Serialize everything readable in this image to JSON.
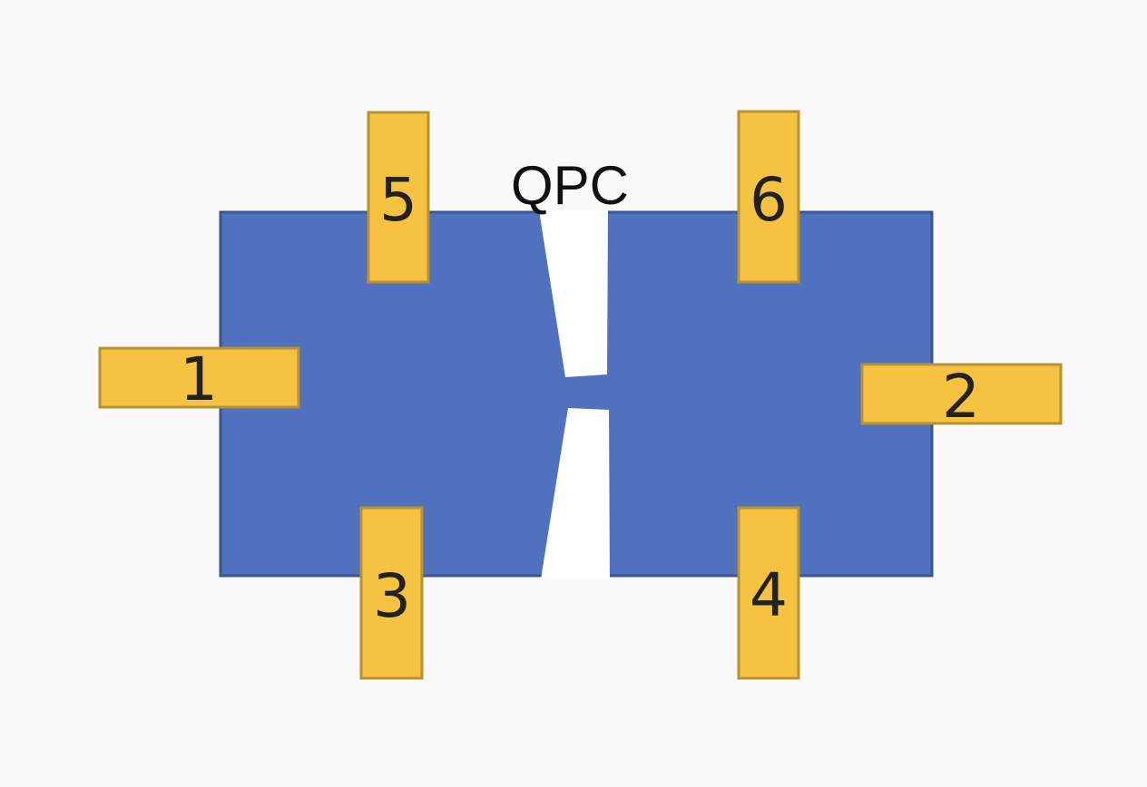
{
  "title": "QPC",
  "colors": {
    "background": "#f9f9f9",
    "channel_fill": "#5072be",
    "channel_stroke": "#3a5590",
    "contact_fill": "#f5c242",
    "contact_stroke": "#b8922e",
    "gate_gap": "#ffffff"
  },
  "contacts": [
    {
      "label": "1"
    },
    {
      "label": "2"
    },
    {
      "label": "3"
    },
    {
      "label": "4"
    },
    {
      "label": "5"
    },
    {
      "label": "6"
    }
  ]
}
